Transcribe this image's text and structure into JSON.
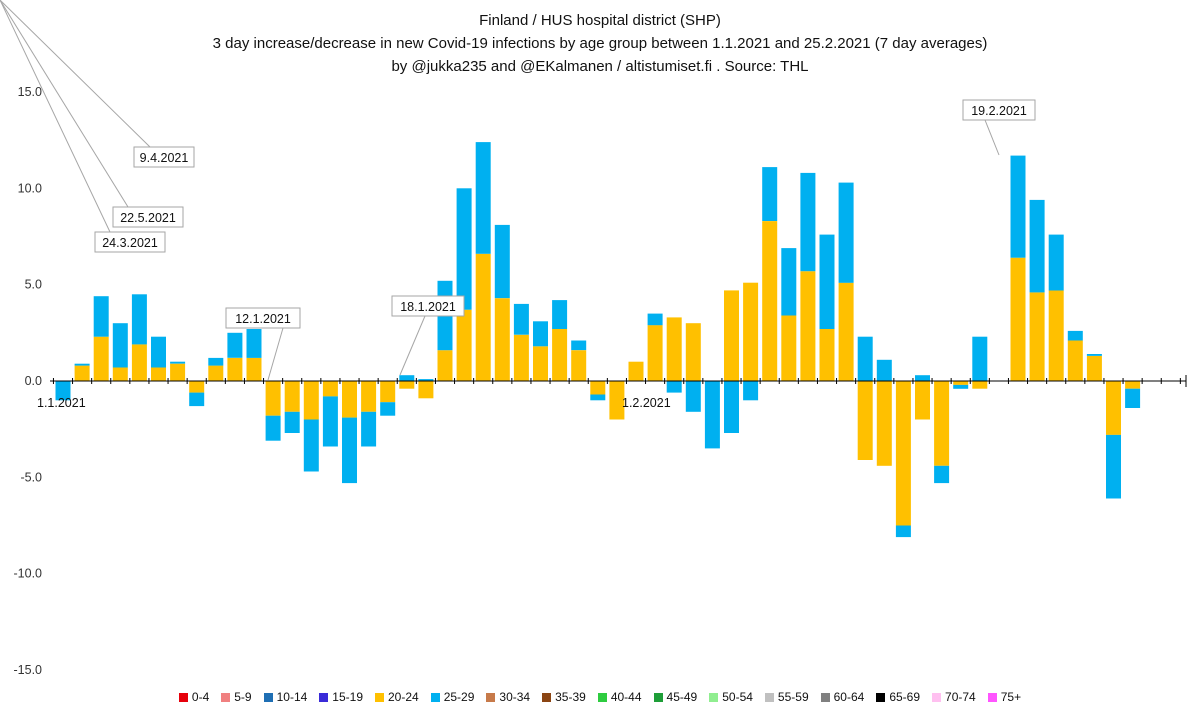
{
  "title": {
    "line1": "Finland / HUS hospital district (SHP)",
    "line2": "3 day increase/decrease in new Covid-19 infections by age group between 1.1.2021 and 25.2.2021  (7 day averages)",
    "line3": "by @jukka235 and @EKalmanen / altistumiset.fi . Source: THL"
  },
  "chart_data": {
    "type": "bar",
    "stacked": true,
    "ylim": [
      -15,
      15
    ],
    "yticks": [
      "15.0",
      "10.0",
      "5.0",
      "0.0",
      "-5.0",
      "-10.0",
      "-15.0"
    ],
    "grid": false,
    "legend_position": "bottom",
    "x_labels": [
      "1.1.2021",
      "1.2.2021"
    ],
    "legend": [
      {
        "name": "0-4",
        "color": "#e6000b"
      },
      {
        "name": "5-9",
        "color": "#f08080"
      },
      {
        "name": "10-14",
        "color": "#1f6fb4"
      },
      {
        "name": "15-19",
        "color": "#3a2bd8"
      },
      {
        "name": "20-24",
        "color": "#ffc000"
      },
      {
        "name": "25-29",
        "color": "#00b0f0"
      },
      {
        "name": "30-34",
        "color": "#c77a4a"
      },
      {
        "name": "35-39",
        "color": "#8b4513"
      },
      {
        "name": "40-44",
        "color": "#2ecc40"
      },
      {
        "name": "45-49",
        "color": "#1e9e38"
      },
      {
        "name": "50-54",
        "color": "#90ee90"
      },
      {
        "name": "55-59",
        "color": "#c0c0c0"
      },
      {
        "name": "60-64",
        "color": "#808080"
      },
      {
        "name": "65-69",
        "color": "#000000"
      },
      {
        "name": "70-74",
        "color": "#ffc0f0"
      },
      {
        "name": "75+",
        "color": "#ff55ff"
      }
    ],
    "series": [
      {
        "name": "20-24",
        "values": [
          0,
          0.8,
          2.3,
          0.7,
          1.9,
          0.7,
          0.9,
          -0.6,
          0.8,
          1.2,
          1.2,
          -1.8,
          -1.6,
          -2.0,
          -0.8,
          -1.9,
          -1.6,
          -1.1,
          -0.4,
          -0.9,
          1.6,
          3.7,
          6.6,
          4.3,
          2.4,
          1.8,
          2.7,
          1.6,
          -0.7,
          -2.0,
          1.0,
          2.9,
          3.3,
          3.0,
          0,
          4.7,
          5.1,
          8.3,
          3.4,
          5.7,
          2.7,
          5.1,
          -4.1,
          -4.4,
          -7.5,
          -2.0,
          -4.4,
          -0.2,
          -0.4,
          0,
          6.4,
          4.6,
          4.7,
          2.1,
          1.3,
          -2.8,
          -0.4
        ]
      },
      {
        "name": "25-29",
        "values": [
          -1.0,
          0.1,
          2.1,
          2.3,
          2.6,
          1.6,
          0.1,
          -0.7,
          0.4,
          1.3,
          1.5,
          -1.3,
          -1.1,
          -2.7,
          -2.6,
          -3.4,
          -1.8,
          -0.7,
          0.3,
          0.1,
          3.6,
          6.3,
          5.8,
          3.8,
          1.6,
          1.3,
          1.5,
          0.5,
          -0.3,
          0,
          0,
          0.6,
          -0.6,
          -1.6,
          -3.5,
          -2.7,
          -1.0,
          2.8,
          3.5,
          5.1,
          4.9,
          5.2,
          2.3,
          1.1,
          -0.6,
          0.3,
          -0.9,
          -0.2,
          2.3,
          0,
          5.3,
          4.8,
          2.9,
          0.5,
          0.1,
          -3.3,
          -1.0
        ]
      }
    ],
    "annotations": [
      "12.1.2021",
      "18.1.2021",
      "19.2.2021",
      "9.4.2021",
      "22.5.2021",
      "24.3.2021"
    ]
  }
}
